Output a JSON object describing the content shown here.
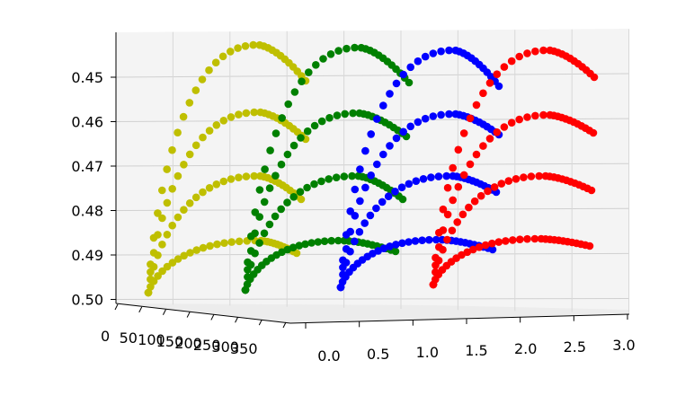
{
  "chart_data": {
    "type": "scatter",
    "title": "",
    "xlabel": "",
    "ylabel": "",
    "zlabel": "",
    "projection": "3d",
    "grid": true,
    "x_axis": {
      "ticks": [
        0.0,
        0.5,
        1.0,
        1.5,
        2.0,
        2.5,
        3.0
      ],
      "tick_labels": [
        "0.0",
        "0.5",
        "1.0",
        "1.5",
        "2.0",
        "2.5",
        "3.0"
      ]
    },
    "y_axis": {
      "ticks": [
        0,
        50,
        100,
        150,
        200,
        250,
        300,
        350
      ],
      "tick_labels": [
        "0",
        "50",
        "100",
        "150",
        "200",
        "250",
        "300",
        "350"
      ]
    },
    "z_axis": {
      "ticks": [
        0.45,
        0.46,
        0.47,
        0.48,
        0.49,
        0.5
      ],
      "tick_labels": [
        "0.45",
        "0.46",
        "0.47",
        "0.48",
        "0.49",
        "0.50"
      ],
      "inverted": true
    },
    "series": [
      {
        "color": "#bfbf00",
        "x_offset": 0.0
      },
      {
        "color": "#008000",
        "x_offset": 1.0
      },
      {
        "color": "#0000ff",
        "x_offset": 2.0
      },
      {
        "color": "#ff0000",
        "x_offset": 3.0
      }
    ],
    "layers_per_series": 4,
    "points_per_layer": 31
  }
}
